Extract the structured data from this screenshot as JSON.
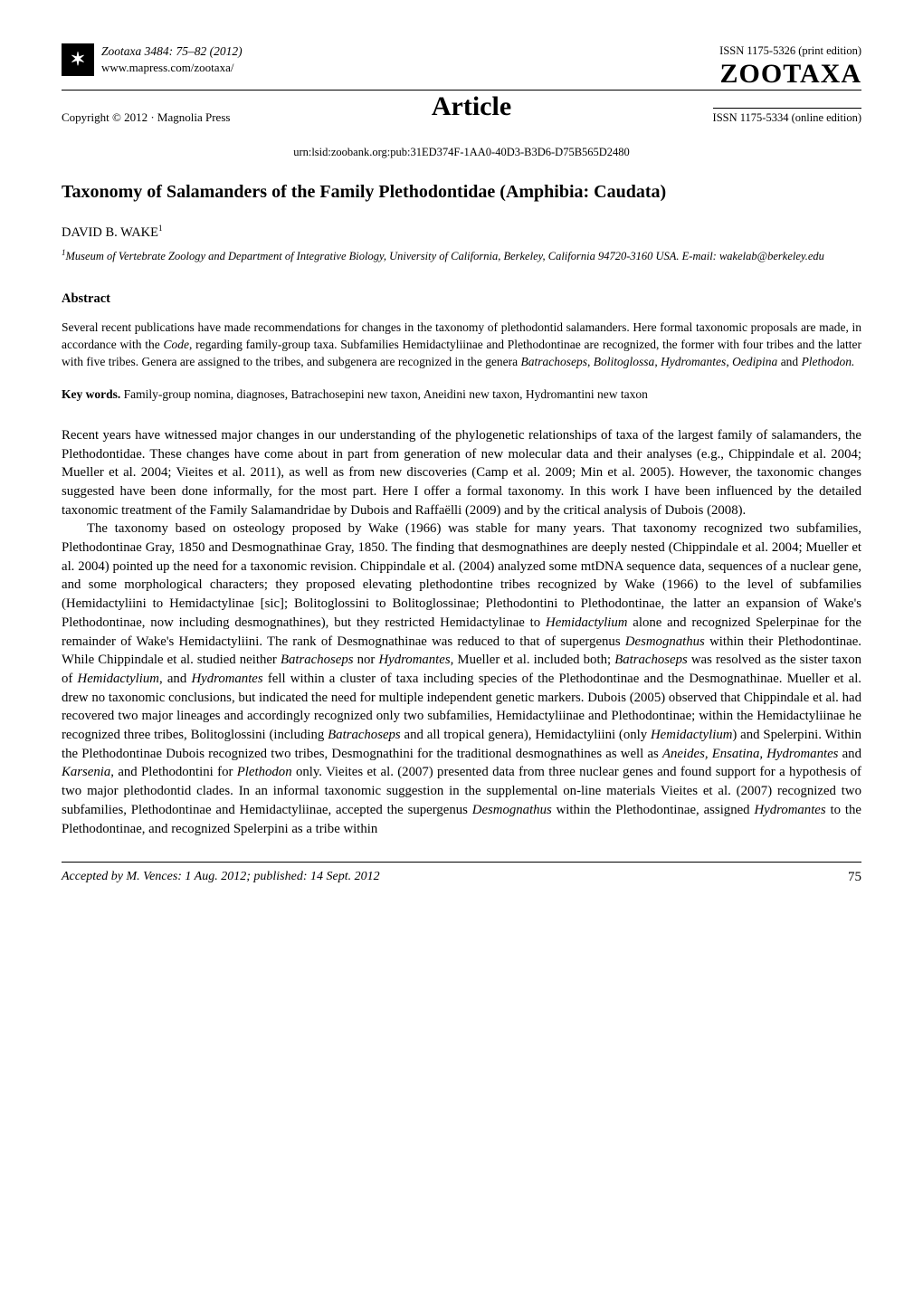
{
  "colors": {
    "text": "#000000",
    "background": "#ffffff",
    "logo_bg": "#000000",
    "logo_fg": "#ffffff",
    "rule": "#000000"
  },
  "typography": {
    "body_family": "Georgia, Times New Roman, serif",
    "body_size_pt": 11,
    "title_size_pt": 15,
    "journal_banner_size_pt": 22,
    "article_label_size_pt": 22,
    "footer_page_size_pt": 12
  },
  "header": {
    "logo_glyph": "✶",
    "journal_line": "Zootaxa 3484: 75–82   (2012)",
    "journal_url": "www.mapress.com/zootaxa/",
    "issn_print": "ISSN 1175-5326  (print edition)",
    "zootaxa_label": "ZOOTAXA",
    "copyright": "Copyright © 2012  ·  Magnolia Press",
    "article_label": "Article",
    "issn_online": "ISSN 1175-5334 (online edition)"
  },
  "urn": "urn:lsid:zoobank.org:pub:31ED374F-1AA0-40D3-B3D6-D75B565D2480",
  "title": "Taxonomy of Salamanders of the Family Plethodontidae (Amphibia: Caudata)",
  "author": "DAVID B. WAKE",
  "author_sup": "1",
  "affiliation_sup": "1",
  "affiliation": "Museum of Vertebrate Zoology and Department of Integrative Biology, University of California, Berkeley, California 94720-3160 USA. E-mail: wakelab@berkeley.edu",
  "abstract": {
    "heading": "Abstract",
    "text": "Several recent publications have made recommendations for changes in the taxonomy of plethodontid salamanders.  Here formal taxonomic proposals are made, in accordance with the Code, regarding family-group taxa.  Subfamilies Hemidactyliinae and Plethodontinae are recognized, the former with four tribes and the latter with five tribes.  Genera are assigned to the tribes, and subgenera are recognized in the genera Batrachoseps, Bolitoglossa, Hydromantes, Oedipina and Plethodon."
  },
  "keywords": {
    "label": "Key words.",
    "text": "  Family-group nomina, diagnoses, Batrachosepini new taxon, Aneidini new taxon, Hydromantini new taxon"
  },
  "body": {
    "p1": "Recent years have witnessed major changes in our understanding of the phylogenetic relationships of taxa of the largest family of salamanders, the Plethodontidae.  These changes have come about in part from generation of new molecular data and their analyses (e.g., Chippindale et al. 2004; Mueller et al. 2004; Vieites et al. 2011), as well as from new discoveries (Camp et al. 2009; Min et al. 2005).  However, the taxonomic changes suggested have been done informally, for the most part. Here I offer a formal taxonomy.  In this work I have been influenced by the detailed taxonomic treatment of the Family Salamandridae by Dubois and Raffaëlli (2009) and by the critical analysis of Dubois (2008).",
    "p2_html": "The taxonomy based on osteology proposed by Wake (1966) was stable for many years. That taxonomy recognized two subfamilies, Plethodontinae Gray, 1850 and Desmognathinae Gray, 1850. The finding that desmognathines are deeply nested (Chippindale et al. 2004; Mueller et al. 2004) pointed up the need for a taxonomic revision.  Chippindale et al. (2004) analyzed some mtDNA sequence data, sequences of a nuclear gene, and some morphological characters; they proposed elevating plethodontine tribes recognized by Wake (1966) to the level of subfamilies (Hemidactyliini to Hemidactylinae [sic]; Bolitoglossini to Bolitoglossinae; Plethodontini to Plethodontinae, the latter an expansion of Wake's Plethodontinae, now including desmognathines), but they restricted Hemidactylinae to <em>Hemidactylium</em> alone and recognized Spelerpinae for the remainder of Wake's Hemidactyliini. The rank of Desmognathinae was reduced to that of supergenus <em>Desmognathus</em> within their Plethodontinae. While Chippindale et al. studied neither <em>Batrachoseps</em> nor <em>Hydromantes</em>, Mueller et al. included both; <em>Batrachoseps</em> was resolved as the sister taxon of <em>Hemidactylium</em>, and <em>Hydromantes</em> fell within a cluster of taxa including species of the Plethodontinae and the Desmognathinae. Mueller et al. drew no taxonomic conclusions, but indicated the need for multiple independent genetic markers. Dubois (2005) observed that Chippindale et al. had recovered two major lineages and accordingly recognized only two subfamilies, Hemidactyliinae and Plethodontinae; within the Hemidactyliinae he recognized three tribes, Bolitoglossini (including <em>Batrachoseps</em> and all tropical genera), Hemidactyliini (only <em>Hemidactylium</em>) and Spelerpini.  Within the Plethodontinae Dubois recognized two tribes, Desmognathini for the traditional desmognathines as well as <em>Aneides, Ensatina, Hydromantes</em> and <em>Karsenia</em>, and Plethodontini for <em>Plethodon</em> only. Vieites et al. (2007) presented data from three nuclear genes and found support for a hypothesis of two major plethodontid clades.  In an informal taxonomic suggestion in the supplemental on-line materials Vieites et al. (2007) recognized two subfamilies, Plethodontinae and Hemidactyliinae, accepted the supergenus <em>Desmognathus</em> within the Plethodontinae, assigned <em>Hydromantes</em> to the Plethodontinae, and recognized Spelerpini as a tribe within"
  },
  "footer": {
    "accepted": "Accepted by M. Vences: 1 Aug. 2012; published: 14 Sept. 2012",
    "page": "75"
  }
}
